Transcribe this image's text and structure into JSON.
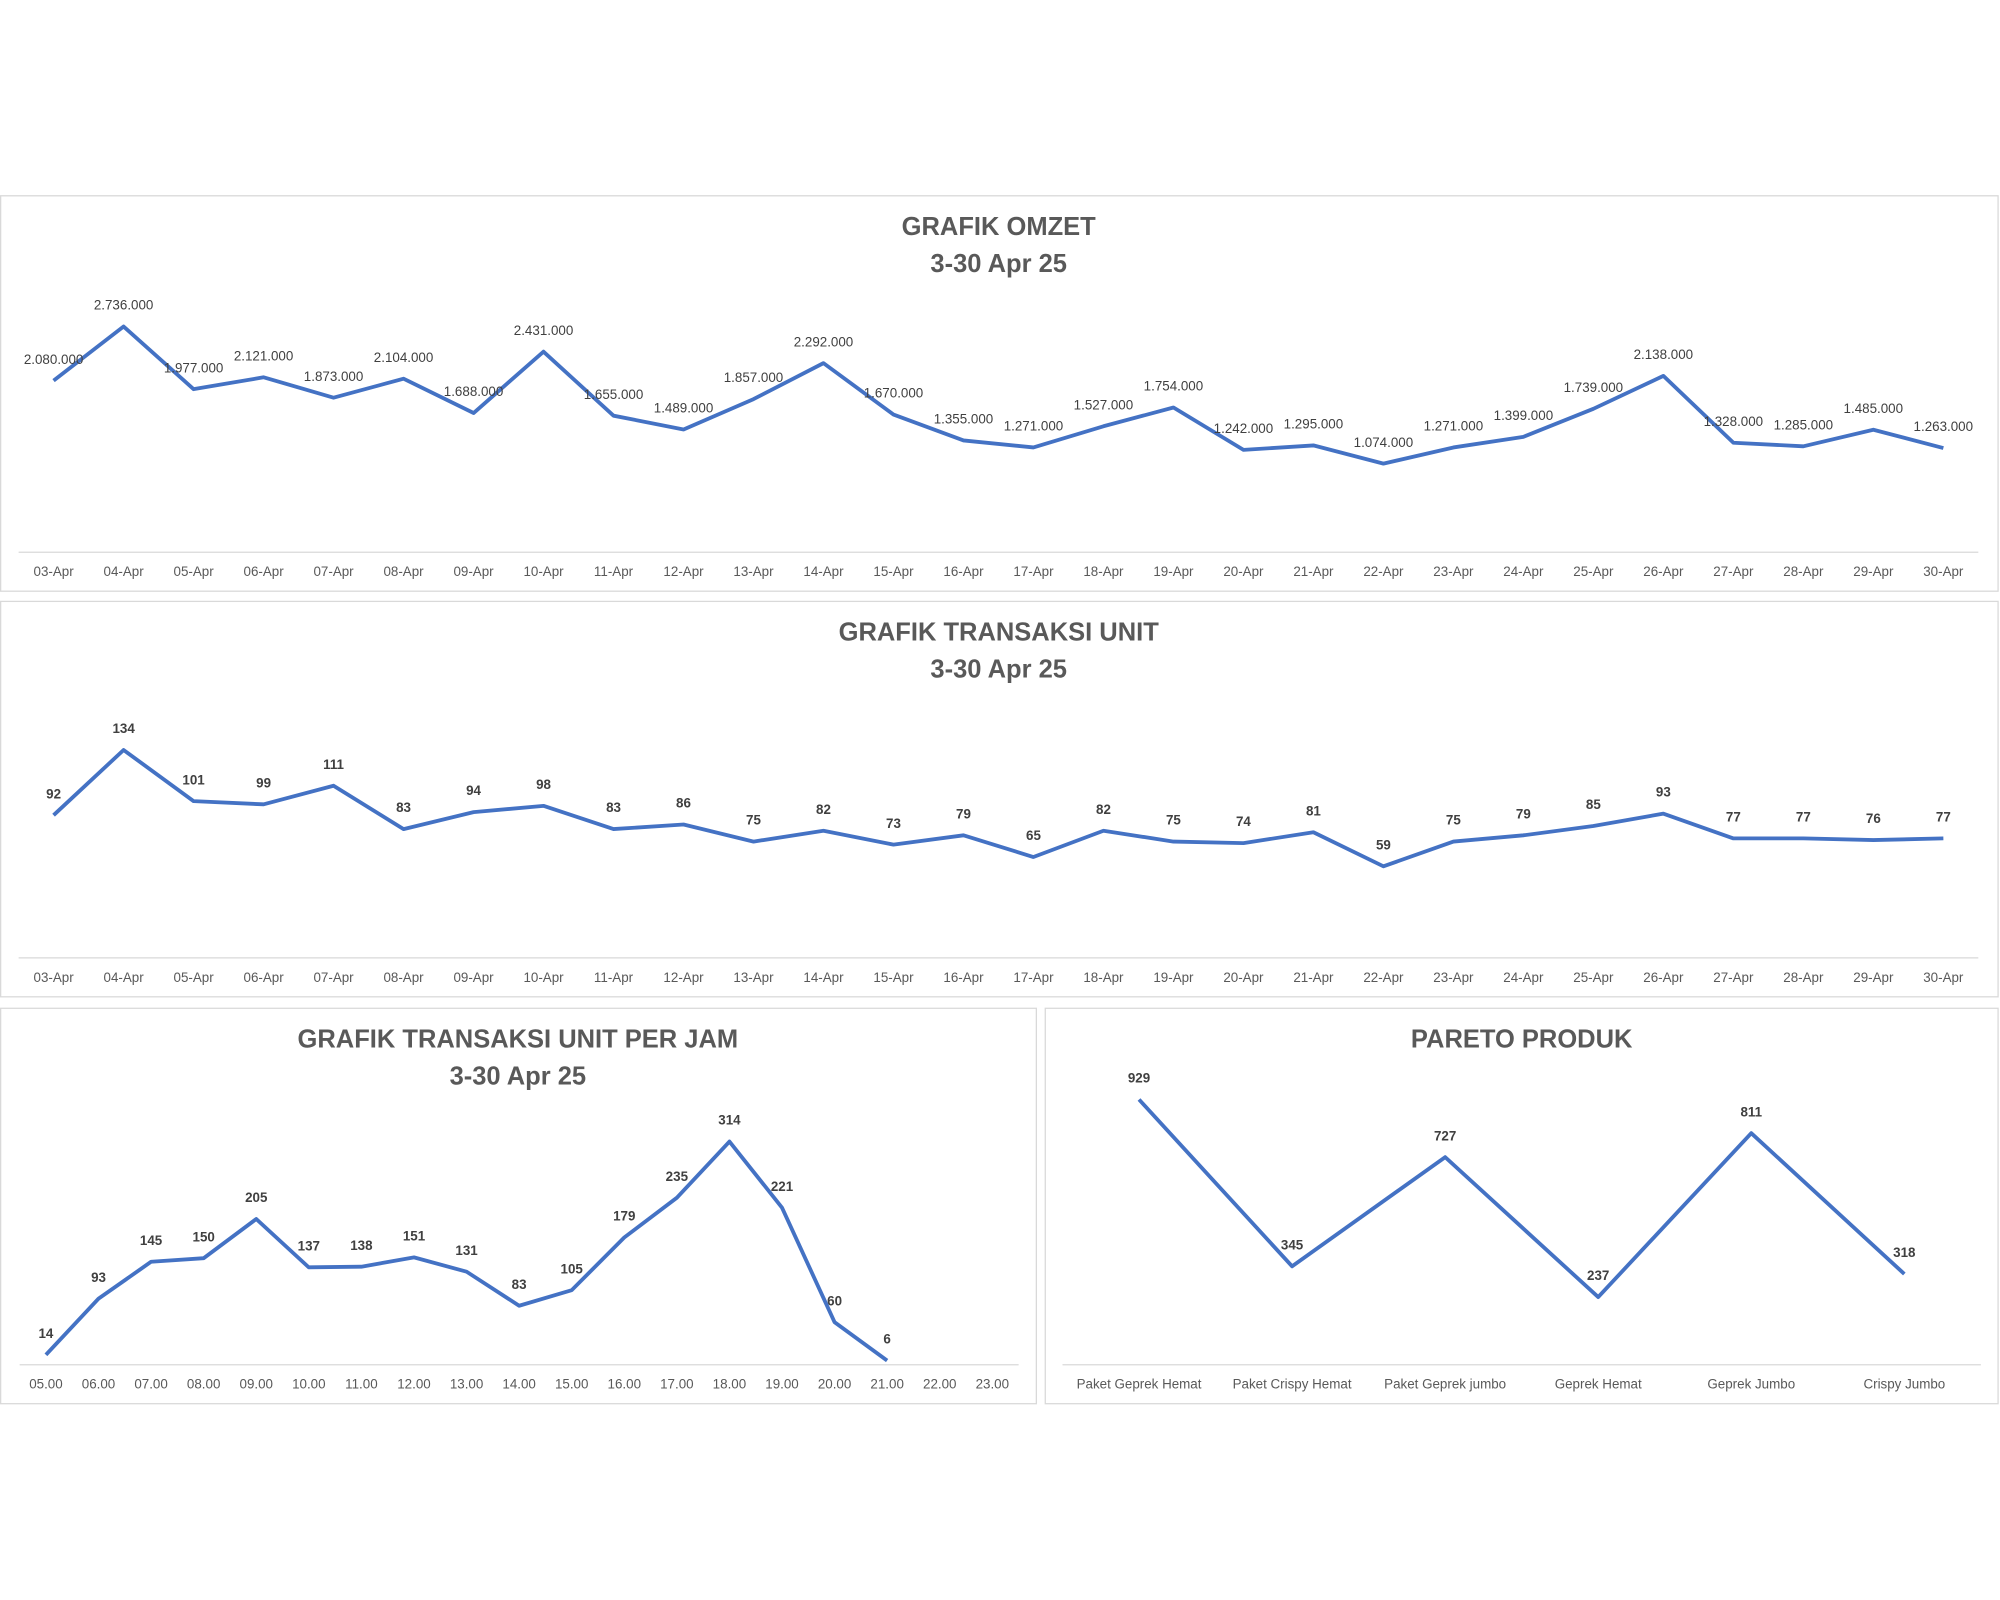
{
  "chart_data": [
    {
      "type": "line",
      "title": "GRAFIK OMZET",
      "subtitle": "3-30 Apr 25",
      "color": "#4472c4",
      "categories": [
        "03-Apr",
        "04-Apr",
        "05-Apr",
        "06-Apr",
        "07-Apr",
        "08-Apr",
        "09-Apr",
        "10-Apr",
        "11-Apr",
        "12-Apr",
        "13-Apr",
        "14-Apr",
        "15-Apr",
        "16-Apr",
        "17-Apr",
        "18-Apr",
        "19-Apr",
        "20-Apr",
        "21-Apr",
        "22-Apr",
        "23-Apr",
        "24-Apr",
        "25-Apr",
        "26-Apr",
        "27-Apr",
        "28-Apr",
        "29-Apr",
        "30-Apr"
      ],
      "values": [
        2080000,
        2736000,
        1977000,
        2121000,
        1873000,
        2104000,
        1688000,
        2431000,
        1655000,
        1489000,
        1857000,
        2292000,
        1670000,
        1355000,
        1271000,
        1527000,
        1754000,
        1242000,
        1295000,
        1074000,
        1271000,
        1399000,
        1739000,
        2138000,
        1328000,
        1285000,
        1485000,
        1263000
      ],
      "value_labels": [
        "2.080.000",
        "2.736.000",
        "1.977.000",
        "2.121.000",
        "1.873.000",
        "2.104.000",
        "1.688.000",
        "2.431.000",
        "1.655.000",
        "1.489.000",
        "1.857.000",
        "2.292.000",
        "1.670.000",
        "1.355.000",
        "1.271.000",
        "1.527.000",
        "1.754.000",
        "1.242.000",
        "1.295.000",
        "1.074.000",
        "1.271.000",
        "1.399.000",
        "1.739.000",
        "2.138.000",
        "1.328.000",
        "1.285.000",
        "1.485.000",
        "1.263.000"
      ]
    },
    {
      "type": "line",
      "title": "GRAFIK TRANSAKSI UNIT",
      "subtitle": "3-30 Apr 25",
      "color": "#4472c4",
      "categories": [
        "03-Apr",
        "04-Apr",
        "05-Apr",
        "06-Apr",
        "07-Apr",
        "08-Apr",
        "09-Apr",
        "10-Apr",
        "11-Apr",
        "12-Apr",
        "13-Apr",
        "14-Apr",
        "15-Apr",
        "16-Apr",
        "17-Apr",
        "18-Apr",
        "19-Apr",
        "20-Apr",
        "21-Apr",
        "22-Apr",
        "23-Apr",
        "24-Apr",
        "25-Apr",
        "26-Apr",
        "27-Apr",
        "28-Apr",
        "29-Apr",
        "30-Apr"
      ],
      "values": [
        92,
        134,
        101,
        99,
        111,
        83,
        94,
        98,
        83,
        86,
        75,
        82,
        73,
        79,
        65,
        82,
        75,
        74,
        81,
        59,
        75,
        79,
        85,
        93,
        77,
        77,
        76,
        77
      ]
    },
    {
      "type": "line",
      "title": "GRAFIK TRANSAKSI UNIT PER JAM",
      "subtitle": "3-30 Apr 25",
      "color": "#4472c4",
      "categories": [
        "05.00",
        "06.00",
        "07.00",
        "08.00",
        "09.00",
        "10.00",
        "11.00",
        "12.00",
        "13.00",
        "14.00",
        "15.00",
        "16.00",
        "17.00",
        "18.00",
        "19.00",
        "20.00",
        "21.00",
        "22.00",
        "23.00"
      ],
      "values": [
        14,
        93,
        145,
        150,
        205,
        137,
        138,
        151,
        131,
        83,
        105,
        179,
        235,
        314,
        221,
        60,
        6,
        null,
        null
      ]
    },
    {
      "type": "line",
      "title": "PARETO PRODUK",
      "color": "#4472c4",
      "categories": [
        "Paket Geprek Hemat",
        "Paket Crispy Hemat",
        "Paket Geprek jumbo",
        "Geprek Hemat",
        "Geprek Jumbo",
        "Crispy Jumbo"
      ],
      "values": [
        929,
        345,
        727,
        237,
        811,
        318
      ]
    }
  ]
}
